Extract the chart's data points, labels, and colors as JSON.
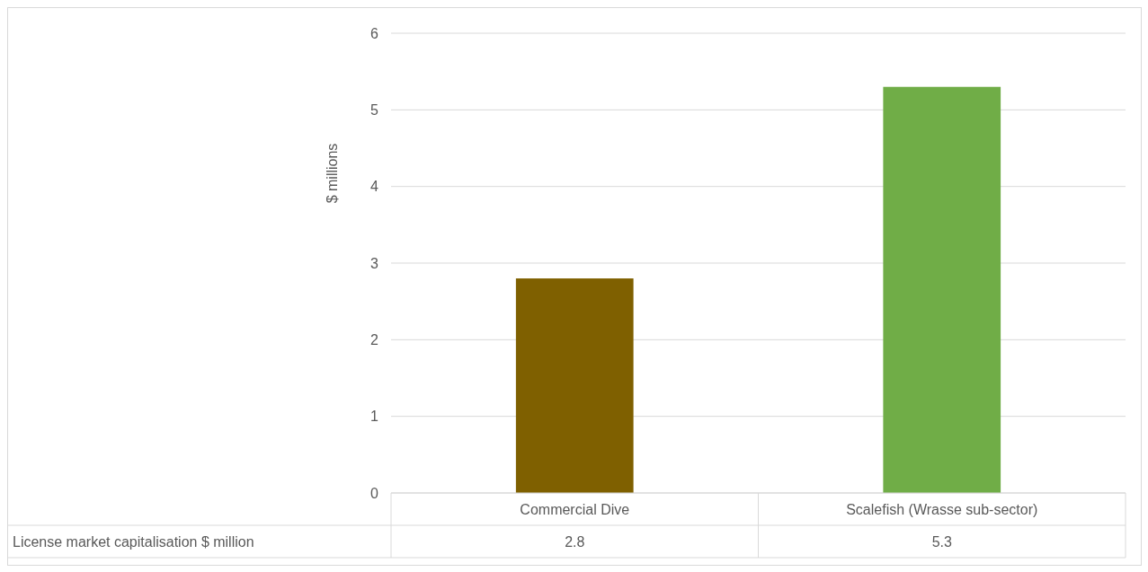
{
  "chart_data": {
    "type": "bar",
    "ylabel": "$ millions",
    "categories": [
      "Commercial Dive",
      "Scalefish (Wrasse sub-sector)"
    ],
    "series": [
      {
        "name": "License market capitalisation $ million",
        "colors": [
          "#7f6000",
          "#70ad47"
        ],
        "values": [
          2.8,
          5.3
        ]
      }
    ],
    "ylim": [
      0,
      6
    ],
    "yticks": [
      0,
      1,
      2,
      3,
      4,
      5,
      6
    ],
    "grid": "y",
    "data_labels": true
  }
}
